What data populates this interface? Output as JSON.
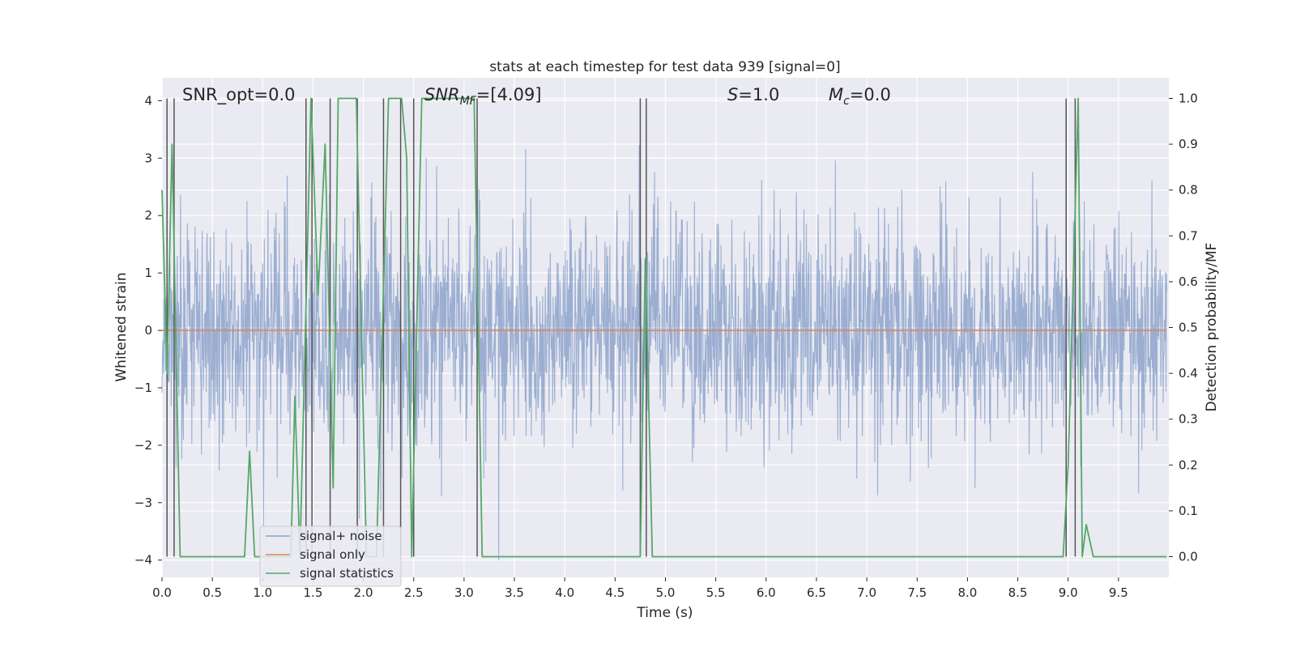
{
  "chart_data": {
    "type": "line",
    "title": "stats at each timestep for test data 939 [signal=0]",
    "xlabel": "Time (s)",
    "ylabel": "Whitened strain",
    "y2label": "Detection probability/MF",
    "xlim": [
      0.0,
      10.0
    ],
    "ylim": [
      -4.3,
      4.4
    ],
    "y2lim": [
      -0.045,
      1.045
    ],
    "x_ticks": [
      0.0,
      0.5,
      1.0,
      1.5,
      2.0,
      2.5,
      3.0,
      3.5,
      4.0,
      4.5,
      5.0,
      5.5,
      6.0,
      6.5,
      7.0,
      7.5,
      8.0,
      8.5,
      9.0,
      9.5
    ],
    "x_tick_labels": [
      "0.0",
      "0.5",
      "1.0",
      "1.5",
      "2.0",
      "2.5",
      "3.0",
      "3.5",
      "4.0",
      "4.5",
      "5.0",
      "5.5",
      "6.0",
      "6.5",
      "7.0",
      "7.5",
      "8.0",
      "8.5",
      "9.0",
      "9.5"
    ],
    "y_ticks": [
      -4,
      -3,
      -2,
      -1,
      0,
      1,
      2,
      3,
      4
    ],
    "y_tick_labels": [
      "−4",
      "−3",
      "−2",
      "−1",
      "0",
      "1",
      "2",
      "3",
      "4"
    ],
    "y2_ticks": [
      0.0,
      0.1,
      0.2,
      0.3,
      0.4,
      0.5,
      0.6,
      0.7,
      0.8,
      0.9,
      1.0
    ],
    "y2_tick_labels": [
      "0.0",
      "0.1",
      "0.2",
      "0.3",
      "0.4",
      "0.5",
      "0.6",
      "0.7",
      "0.8",
      "0.9",
      "1.0"
    ],
    "grid": true,
    "legend_position": "lower-left",
    "annotations": {
      "snr_opt": "SNR_opt=0.0",
      "snr_mf_label": "SNR",
      "snr_mf_sub": "MF",
      "snr_mf_value": "=[4.09]",
      "s_label": "S",
      "s_value": "=1.0",
      "mc_label": "M",
      "mc_sub": "c",
      "mc_value": "=0.0"
    },
    "series": [
      {
        "name": "signal+ noise",
        "color": "#4c72b0",
        "opacity": 0.5,
        "kind": "noise",
        "t_start": 0.0,
        "t_end": 9.98,
        "dt": 0.004,
        "typical_envelope": [
          -2.4,
          2.4
        ],
        "observed_extremes": [
          -4.0,
          4.0
        ]
      },
      {
        "name": "signal only",
        "color": "#dd8452",
        "x": [
          0.0,
          9.98
        ],
        "y": [
          0.0,
          0.0
        ]
      },
      {
        "name": "signal statistics",
        "color": "#55a868",
        "axis": "right",
        "x": [
          0.0,
          0.05,
          0.1,
          0.18,
          0.82,
          0.87,
          0.92,
          1.28,
          1.32,
          1.37,
          1.48,
          1.55,
          1.62,
          1.7,
          1.75,
          1.93,
          2.03,
          2.13,
          2.25,
          2.38,
          2.43,
          2.48,
          2.58,
          3.1,
          3.18,
          4.75,
          4.8,
          4.87,
          8.95,
          9.0,
          9.1,
          9.14,
          9.18,
          9.25,
          9.98
        ],
        "y": [
          0.8,
          0.4,
          0.9,
          0.0,
          0.0,
          0.23,
          0.0,
          0.0,
          0.35,
          0.0,
          1.0,
          0.57,
          0.9,
          0.15,
          1.0,
          1.0,
          0.0,
          0.0,
          1.0,
          1.0,
          0.87,
          0.0,
          1.0,
          1.0,
          0.0,
          0.0,
          0.65,
          0.0,
          0.0,
          0.2,
          1.0,
          0.0,
          0.07,
          0.0,
          0.0
        ]
      }
    ],
    "vertical_markers": {
      "color": "#555555",
      "x": [
        0.05,
        0.12,
        1.43,
        1.49,
        1.67,
        1.94,
        2.2,
        2.37,
        2.5,
        3.13,
        4.75,
        4.81,
        8.98,
        9.07
      ]
    }
  }
}
